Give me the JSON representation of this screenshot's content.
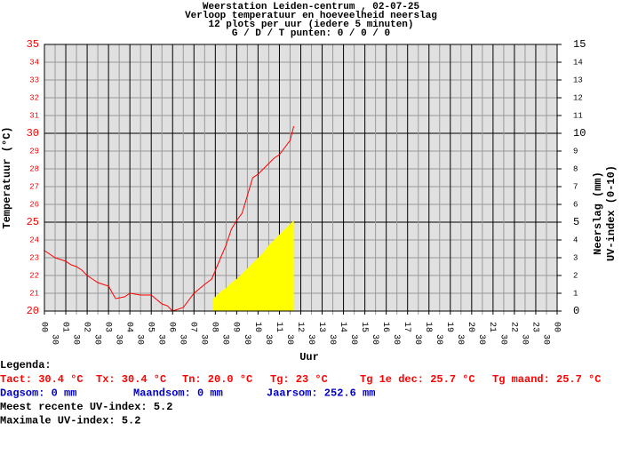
{
  "chart_data": {
    "type": "line",
    "title_lines": [
      "Weerstation Leiden-centrum , 02-07-25",
      "Verloop temperatuur en hoeveelheid neerslag",
      "12 plots per uur (iedere 5 minuten)",
      "G / D / T punten: 0 / 0 / 0"
    ],
    "ylabel": "Temperatuur (°C)",
    "y2labels": [
      "Neerslag (mm)",
      "UV-index (0-10)"
    ],
    "xlabel": "Uur",
    "xlim": [
      0,
      24
    ],
    "ylim": [
      20,
      35
    ],
    "y2lim": [
      0,
      15
    ],
    "yticks": [
      20,
      21,
      22,
      23,
      24,
      25,
      26,
      27,
      28,
      29,
      30,
      31,
      32,
      33,
      34,
      35
    ],
    "y2ticks": [
      0,
      1,
      2,
      3,
      4,
      5,
      6,
      7,
      8,
      9,
      10,
      11,
      12,
      13,
      14,
      15
    ],
    "xticks": [
      {
        "value": 0,
        "label": "00"
      },
      {
        "value": 0.5,
        "label": "30"
      },
      {
        "value": 1,
        "label": "01"
      },
      {
        "value": 1.5,
        "label": "30"
      },
      {
        "value": 2,
        "label": "02"
      },
      {
        "value": 2.5,
        "label": "30"
      },
      {
        "value": 3,
        "label": "03"
      },
      {
        "value": 3.5,
        "label": "30"
      },
      {
        "value": 4,
        "label": "04"
      },
      {
        "value": 4.5,
        "label": "30"
      },
      {
        "value": 5,
        "label": "05"
      },
      {
        "value": 5.5,
        "label": "30"
      },
      {
        "value": 6,
        "label": "06"
      },
      {
        "value": 6.5,
        "label": "30"
      },
      {
        "value": 7,
        "label": "07"
      },
      {
        "value": 7.5,
        "label": "30"
      },
      {
        "value": 8,
        "label": "08"
      },
      {
        "value": 8.5,
        "label": "30"
      },
      {
        "value": 9,
        "label": "09"
      },
      {
        "value": 9.5,
        "label": "30"
      },
      {
        "value": 10,
        "label": "10"
      },
      {
        "value": 10.5,
        "label": "30"
      },
      {
        "value": 11,
        "label": "11"
      },
      {
        "value": 11.5,
        "label": "30"
      },
      {
        "value": 12,
        "label": "12"
      },
      {
        "value": 12.5,
        "label": "30"
      },
      {
        "value": 13,
        "label": "13"
      },
      {
        "value": 13.5,
        "label": "30"
      },
      {
        "value": 14,
        "label": "14"
      },
      {
        "value": 14.5,
        "label": "30"
      },
      {
        "value": 15,
        "label": "15"
      },
      {
        "value": 15.5,
        "label": "30"
      },
      {
        "value": 16,
        "label": "16"
      },
      {
        "value": 16.5,
        "label": "30"
      },
      {
        "value": 17,
        "label": "17"
      },
      {
        "value": 17.5,
        "label": "30"
      },
      {
        "value": 18,
        "label": "18"
      },
      {
        "value": 18.5,
        "label": "30"
      },
      {
        "value": 19,
        "label": "19"
      },
      {
        "value": 19.5,
        "label": "30"
      },
      {
        "value": 20,
        "label": "20"
      },
      {
        "value": 20.5,
        "label": "30"
      },
      {
        "value": 21,
        "label": "21"
      },
      {
        "value": 21.5,
        "label": "30"
      },
      {
        "value": 22,
        "label": "22"
      },
      {
        "value": 22.5,
        "label": "30"
      },
      {
        "value": 23,
        "label": "23"
      },
      {
        "value": 23.5,
        "label": "30"
      },
      {
        "value": 24,
        "label": "00"
      }
    ],
    "series": [
      {
        "type": "area",
        "axis": "y2",
        "color": "#ffff00",
        "x": [
          7.9,
          8.0,
          8.25,
          8.5,
          8.75,
          9.0,
          9.25,
          9.5,
          9.75,
          10.0,
          10.25,
          10.5,
          10.75,
          11.0,
          11.25,
          11.5,
          11.67
        ],
        "values": [
          0.7,
          0.8,
          1.1,
          1.3,
          1.6,
          1.8,
          2.1,
          2.4,
          2.7,
          3.0,
          3.3,
          3.7,
          4.0,
          4.3,
          4.6,
          4.9,
          5.1
        ]
      },
      {
        "type": "line",
        "color": "#ff0000",
        "x": [
          0,
          0.25,
          0.5,
          0.75,
          1,
          1.25,
          1.5,
          1.75,
          2,
          2.25,
          2.5,
          2.75,
          3,
          3.33,
          3.75,
          4,
          4.5,
          5,
          5.5,
          5.75,
          6,
          6.5,
          7,
          7.5,
          7.83,
          8.25,
          8.5,
          8.75,
          9,
          9.25,
          9.5,
          9.75,
          10,
          10.25,
          10.5,
          10.75,
          11,
          11.25,
          11.5,
          11.67
        ],
        "values": [
          23.4,
          23.2,
          23.0,
          22.9,
          22.8,
          22.6,
          22.5,
          22.3,
          22.0,
          21.8,
          21.6,
          21.5,
          21.4,
          20.7,
          20.8,
          21.0,
          20.9,
          20.9,
          20.4,
          20.3,
          20.0,
          20.2,
          21.0,
          21.5,
          21.8,
          23.0,
          23.7,
          24.6,
          25.1,
          25.5,
          26.5,
          27.5,
          27.7,
          28.0,
          28.3,
          28.6,
          28.8,
          29.2,
          29.6,
          30.4
        ]
      }
    ]
  },
  "legend": {
    "title": "Legenda:",
    "rows": [
      [
        {
          "text": "Tact: 30.4 °C",
          "color": "#ff0000"
        },
        {
          "text": "Tx: 30.4 °C",
          "color": "#ff0000"
        },
        {
          "text": "Tn: 20.0 °C",
          "color": "#ff0000"
        },
        {
          "text": "Tg: 23 °C",
          "color": "#ff0000"
        },
        {
          "text": "Tg 1e dec: 25.7 °C",
          "color": "#ff0000"
        },
        {
          "text": "Tg maand: 25.7 °C",
          "color": "#ff0000"
        }
      ],
      [
        {
          "text": "Dagsom: 0 mm",
          "color": "#0000cc"
        },
        {
          "text": "Maandsom: 0 mm",
          "color": "#0000cc"
        },
        {
          "text": "Jaarsom: 252.6 mm",
          "color": "#0000cc"
        }
      ],
      [
        {
          "text": "Meest recente UV-index: 5.2",
          "color": "#000000"
        }
      ],
      [
        {
          "text": "Maximale UV-index: 5.2",
          "color": "#000000"
        }
      ]
    ]
  }
}
